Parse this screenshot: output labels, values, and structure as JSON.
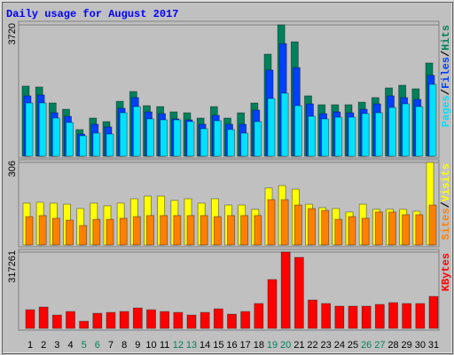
{
  "title": "Daily usage for August 2017",
  "separator": "/",
  "chart_data": [
    {
      "type": "bar",
      "ylim": [
        0,
        3720
      ],
      "yticks": [
        3720
      ],
      "series": [
        {
          "name": "Hits",
          "color": "#00805c",
          "values": [
            1986,
            1960,
            1508,
            1330,
            754,
            1080,
            980,
            1556,
            1832,
            1430,
            1405,
            1256,
            1230,
            1080,
            1405,
            1080,
            1230,
            1508,
            2890,
            3720,
            3240,
            1710,
            1458,
            1458,
            1458,
            1530,
            1660,
            1935,
            2010,
            1910,
            2640
          ]
        },
        {
          "name": "Files",
          "color": "#0040ff",
          "values": [
            1710,
            1735,
            1230,
            1130,
            628,
            905,
            830,
            1357,
            1660,
            1256,
            1206,
            1056,
            1030,
            905,
            1156,
            905,
            905,
            1307,
            2440,
            3190,
            2510,
            1483,
            1206,
            1256,
            1230,
            1330,
            1483,
            1710,
            1660,
            1608,
            2290
          ]
        },
        {
          "name": "Pages",
          "color": "#00e0ff",
          "values": [
            1508,
            1508,
            1080,
            955,
            578,
            653,
            628,
            1230,
            1405,
            1056,
            1030,
            1030,
            980,
            779,
            1005,
            754,
            653,
            980,
            1633,
            1784,
            1430,
            1130,
            1056,
            1105,
            1105,
            1206,
            1230,
            1380,
            1483,
            1405,
            2035
          ]
        }
      ]
    },
    {
      "type": "bar",
      "ylim": [
        0,
        306
      ],
      "yticks": [
        306
      ],
      "series": [
        {
          "name": "Visits",
          "color": "#ffff00",
          "values": [
            155,
            158,
            155,
            151,
            135,
            155,
            145,
            155,
            171,
            181,
            181,
            165,
            171,
            155,
            171,
            148,
            148,
            132,
            211,
            220,
            207,
            151,
            138,
            135,
            122,
            151,
            132,
            132,
            132,
            125,
            306
          ]
        },
        {
          "name": "Sites",
          "color": "#ff8000",
          "values": [
            105,
            109,
            99,
            92,
            72,
            95,
            95,
            99,
            105,
            109,
            109,
            109,
            109,
            109,
            105,
            109,
            109,
            109,
            168,
            168,
            148,
            135,
            128,
            95,
            105,
            99,
            122,
            122,
            112,
            112,
            148
          ]
        }
      ]
    },
    {
      "type": "bar",
      "ylim": [
        0,
        317261
      ],
      "yticks": [
        317261
      ],
      "categories": [
        "1",
        "2",
        "3",
        "4",
        "5",
        "6",
        "7",
        "8",
        "9",
        "10",
        "11",
        "12",
        "13",
        "14",
        "15",
        "16",
        "17",
        "18",
        "19",
        "20",
        "21",
        "22",
        "23",
        "24",
        "25",
        "26",
        "27",
        "28",
        "29",
        "30",
        "31"
      ],
      "category_colors": [
        "#000000",
        "#000000",
        "#000000",
        "#000000",
        "#00805c",
        "#00805c",
        "#000000",
        "#000000",
        "#000000",
        "#000000",
        "#000000",
        "#00805c",
        "#00805c",
        "#000000",
        "#000000",
        "#000000",
        "#000000",
        "#000000",
        "#00805c",
        "#00805c",
        "#000000",
        "#000000",
        "#000000",
        "#000000",
        "#000000",
        "#00805c",
        "#00805c",
        "#000000",
        "#000000",
        "#000000",
        "#000000"
      ],
      "series": [
        {
          "name": "KBytes",
          "color": "#ff0000",
          "values": [
            77500,
            88500,
            55300,
            70100,
            29500,
            62700,
            66400,
            70100,
            84800,
            77500,
            70100,
            66400,
            55300,
            66400,
            81200,
            59000,
            70100,
            103300,
            202900,
            317261,
            295100,
            118000,
            103300,
            92200,
            92200,
            92200,
            99600,
            107000,
            103300,
            103300,
            132800
          ]
        }
      ]
    }
  ]
}
